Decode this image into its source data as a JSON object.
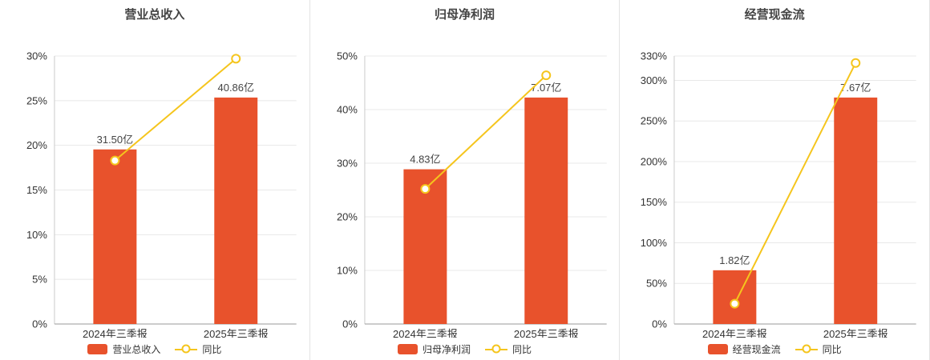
{
  "colors": {
    "bar": "#e8522c",
    "line": "#f5c51d",
    "grid": "#e8e8e8",
    "axis": "#999999",
    "axis_left": "#cccccc",
    "text": "#333333",
    "title": "#444444",
    "bar_label": "#444444"
  },
  "chart_data": [
    {
      "type": "bar+line",
      "title": "营业总收入",
      "categories": [
        "2024年三季报",
        "2025年三季报"
      ],
      "bar_series": {
        "name": "营业总收入",
        "unit": "亿",
        "values": [
          31.5,
          40.86
        ],
        "labels": [
          "31.50亿",
          "40.86亿"
        ]
      },
      "line_series": {
        "name": "同比",
        "values_pct": [
          18.3,
          29.7
        ]
      },
      "y_axis": {
        "ticks_pct": [
          0,
          5,
          10,
          15,
          20,
          25,
          30
        ],
        "max_pct": 30,
        "tick_suffix": "%"
      },
      "legend_position": "bottom",
      "grid": true
    },
    {
      "type": "bar+line",
      "title": "归母净利润",
      "categories": [
        "2024年三季报",
        "2025年三季报"
      ],
      "bar_series": {
        "name": "归母净利润",
        "unit": "亿",
        "values": [
          4.83,
          7.07
        ],
        "labels": [
          "4.83亿",
          "7.07亿"
        ]
      },
      "line_series": {
        "name": "同比",
        "values_pct": [
          25.2,
          46.4
        ]
      },
      "y_axis": {
        "ticks_pct": [
          0,
          10,
          20,
          30,
          40,
          50
        ],
        "max_pct": 50,
        "tick_suffix": "%"
      },
      "legend_position": "bottom",
      "grid": true
    },
    {
      "type": "bar+line",
      "title": "经营现金流",
      "categories": [
        "2024年三季报",
        "2025年三季报"
      ],
      "bar_series": {
        "name": "经营现金流",
        "unit": "亿",
        "values": [
          1.82,
          7.67
        ],
        "labels": [
          "1.82亿",
          "7.67亿"
        ]
      },
      "line_series": {
        "name": "同比",
        "values_pct": [
          25,
          321.4
        ]
      },
      "y_axis": {
        "ticks_pct": [
          0,
          50,
          100,
          150,
          200,
          250,
          300,
          330
        ],
        "max_pct": 330,
        "tick_suffix": "%"
      },
      "legend_position": "bottom",
      "grid": true
    }
  ]
}
